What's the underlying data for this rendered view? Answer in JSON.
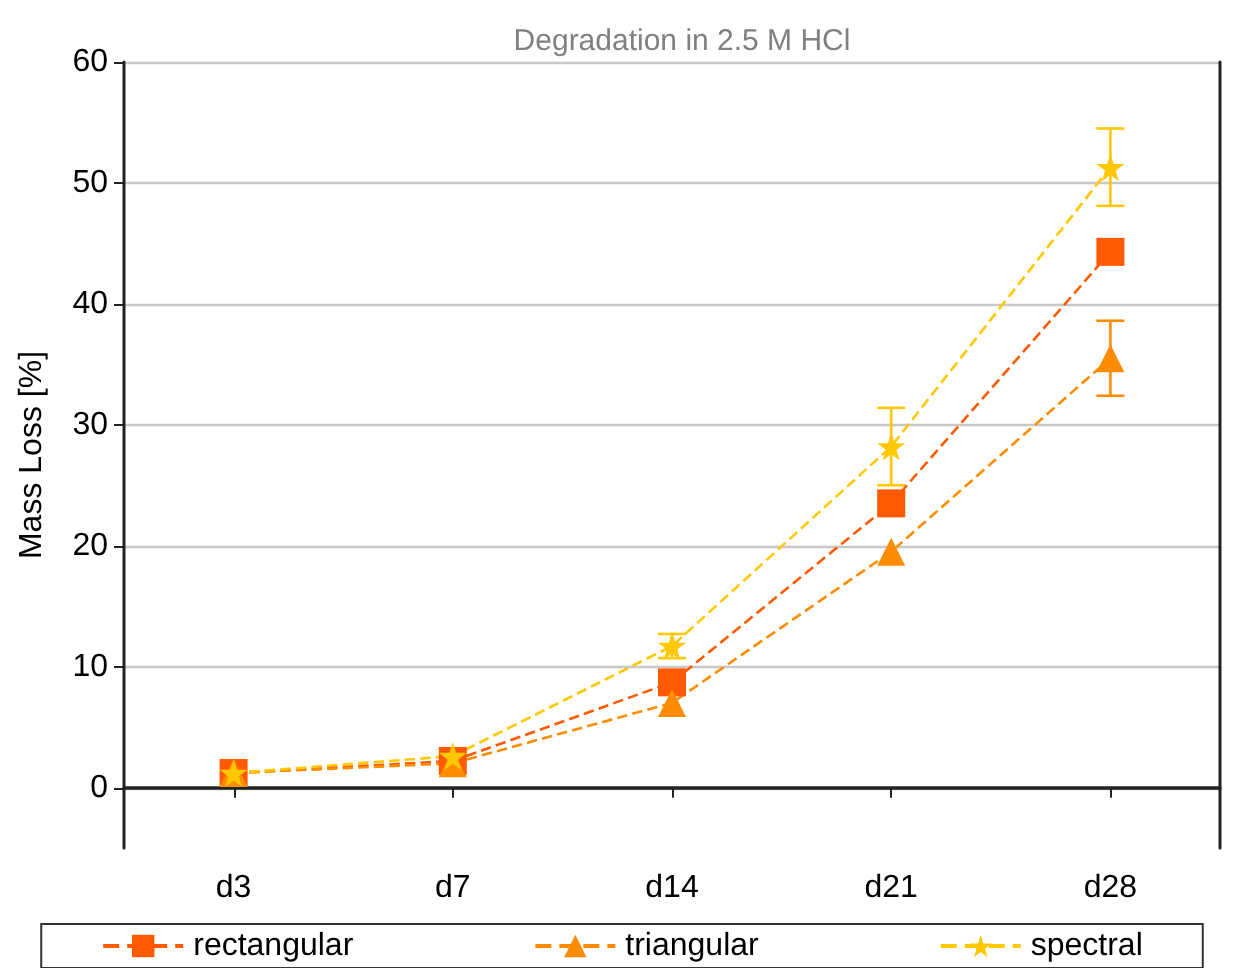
{
  "chart_data": {
    "type": "line",
    "title": "Degradation in 2.5 M HCl",
    "ylabel": "Mass Loss [%]",
    "categories": [
      "d3",
      "d7",
      "d14",
      "d21",
      "d28"
    ],
    "series": [
      {
        "name": "rectangular",
        "color": "#ff5a00",
        "marker": "square",
        "values": [
          1.2,
          2.2,
          8.7,
          23.5,
          44.3
        ]
      },
      {
        "name": "triangular",
        "color": "#ff8c00",
        "marker": "triangle",
        "values": [
          1.2,
          2.0,
          7.0,
          19.5,
          35.5
        ],
        "errors": [
          null,
          null,
          null,
          null,
          3.1
        ]
      },
      {
        "name": "spectral",
        "color": "#ffc800",
        "marker": "star",
        "values": [
          1.2,
          2.6,
          11.7,
          28.2,
          51.3
        ],
        "errors": [
          null,
          null,
          1.0,
          3.2,
          3.2
        ]
      }
    ],
    "ylim": [
      -5,
      60
    ],
    "yticks": [
      0,
      10,
      20,
      30,
      40,
      50,
      60
    ],
    "grid": "y",
    "legend": "bottom",
    "line_style": "dashed"
  }
}
